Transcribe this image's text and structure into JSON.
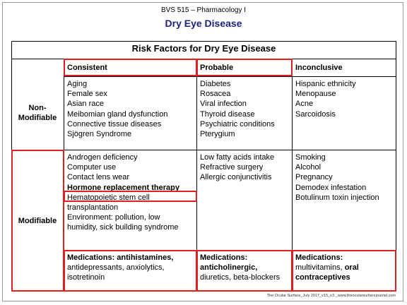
{
  "course": "BVS 515 – Pharmacology I",
  "title": "Dry Eye Disease",
  "table": {
    "title": "Risk Factors for Dry Eye Disease",
    "headers": [
      "Consistent",
      "Probable",
      "Inconclusive"
    ],
    "rows": {
      "non_modifiable": {
        "label_line1": "Non-",
        "label_line2": "Modifiable",
        "consistent": [
          "Aging",
          "Female sex",
          "Asian race",
          "Meibomian gland dysfunction",
          "Connective tissue diseases",
          "Sjögren Syndrome"
        ],
        "probable": [
          "Diabetes",
          "Rosacea",
          "Viral infection",
          "Thyroid disease",
          "Psychiatric conditions",
          "Pterygium"
        ],
        "inconclusive": [
          "Hispanic ethnicity",
          "Menopause",
          "Acne",
          "Sarcoidosis"
        ]
      },
      "modifiable": {
        "label": "Modifiable",
        "consistent": [
          "Androgen deficiency",
          "Computer use",
          "Contact lens wear"
        ],
        "consistent_highlight": "Hormone replacement therapy",
        "consistent_rest": [
          "Hematopoietic stem cell",
          "transplantation",
          "Environment: pollution, low",
          "humidity, sick building syndrome"
        ],
        "probable": [
          "Low fatty acids intake",
          "Refractive surgery",
          "Allergic conjunctivitis"
        ],
        "inconclusive": [
          "Smoking",
          "Alcohol",
          "Pregnancy",
          "Demodex infestation",
          "Botulinum toxin injection"
        ]
      },
      "medications": {
        "consistent_bold": "Medications: antihistamines,",
        "consistent_rest": [
          "antidepressants, anxiolytics,",
          "isotretinoin"
        ],
        "probable_bold1": "Medications:",
        "probable_bold2": "anticholinergic,",
        "probable_rest": "diuretics, beta-blockers",
        "inconclusive_bold": "Medications:",
        "inconclusive_normal": "multivitamins,",
        "inconclusive_bold2": "oral",
        "inconclusive_bold3": "contraceptives"
      }
    }
  },
  "footer": "The Ocular Surface_July 2017_v15_n3 _www.theocularsurfacejournal.com",
  "colors": {
    "title": "#1a237e",
    "highlight_box": "#e02020"
  }
}
